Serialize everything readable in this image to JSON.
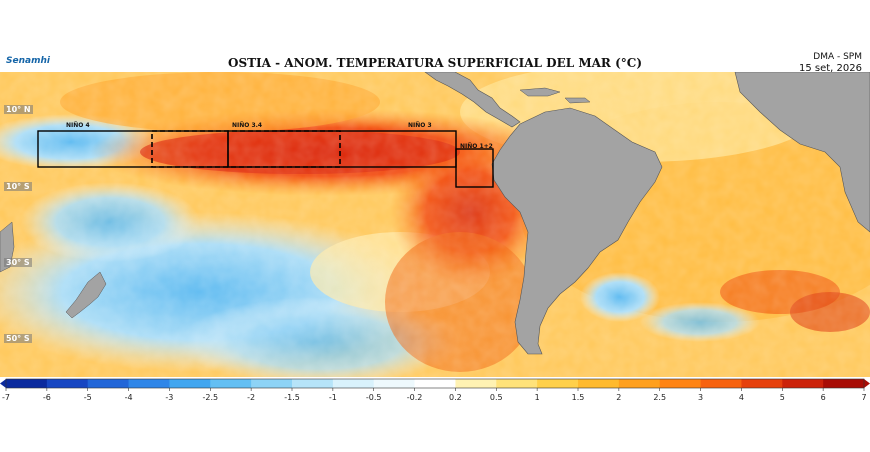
{
  "logo_text": "Senamhi",
  "title": "OSTIA - ANOM. TEMPERATURA SUPERFICIAL DEL MAR (°C)",
  "source": "DMA - SPM",
  "date": "15 set, 2026",
  "latitude_labels": [
    "10° N",
    "10° S",
    "30° S",
    "50° S"
  ],
  "regions": [
    {
      "name": "NIÑO 4",
      "style": "solid"
    },
    {
      "name": "NIÑO 3.4",
      "style": "dashed"
    },
    {
      "name": "NIÑO 3",
      "style": "solid"
    },
    {
      "name": "NIÑO 1+2",
      "style": "solid"
    }
  ],
  "colorbar": {
    "ticks": [
      "-7",
      "-6",
      "-5",
      "-4",
      "-3",
      "-2.5",
      "-2",
      "-1.5",
      "-1",
      "-0.5",
      "-0.2",
      "0.2",
      "0.5",
      "1",
      "1.5",
      "2",
      "2.5",
      "3",
      "4",
      "5",
      "6",
      "7"
    ],
    "colors": [
      "#0b2a9e",
      "#1746c2",
      "#2266d8",
      "#2f86e8",
      "#41a6f0",
      "#63bff3",
      "#8dd3f6",
      "#b6e4f9",
      "#d9f2fc",
      "#eef9fd",
      "#ffffff",
      "#fff2b3",
      "#ffe27a",
      "#ffd04a",
      "#ffba2e",
      "#ffa01e",
      "#ff8414",
      "#f7620f",
      "#e6400c",
      "#cc220a",
      "#a80d06"
    ]
  },
  "land_color": "#a3a3a3"
}
